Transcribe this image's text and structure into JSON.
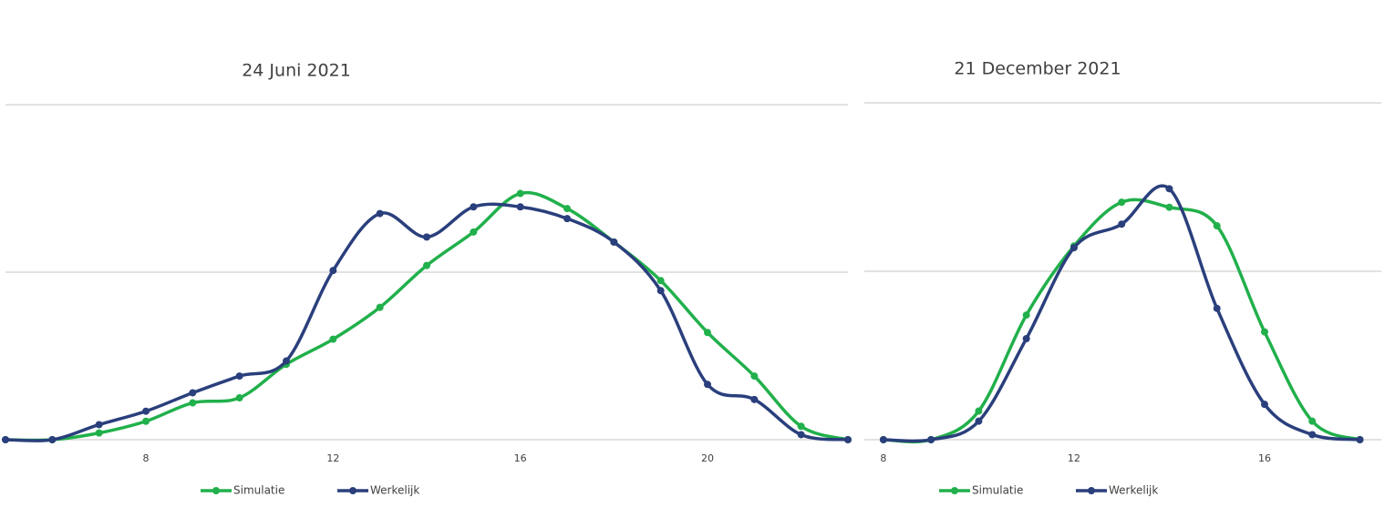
{
  "chart_data": [
    {
      "type": "line",
      "title": "24 Juni 2021",
      "x": [
        5,
        6,
        7,
        8,
        9,
        10,
        11,
        12,
        13,
        14,
        15,
        16,
        17,
        18,
        19,
        20,
        21,
        22,
        23
      ],
      "xlim": [
        5,
        23
      ],
      "xticks": [
        8,
        12,
        16,
        20
      ],
      "ylim": [
        0,
        2
      ],
      "yticks": [
        0,
        1,
        2
      ],
      "grid": true,
      "smooth": true,
      "series": [
        {
          "name": "Simulatie",
          "color": "#21b04b",
          "values": [
            0,
            0,
            0.04,
            0.11,
            0.22,
            0.25,
            0.45,
            0.6,
            0.79,
            1.04,
            1.24,
            1.47,
            1.38,
            1.18,
            0.95,
            0.64,
            0.38,
            0.08,
            0
          ]
        },
        {
          "name": "Werkelijk",
          "color": "#2a3f7c",
          "values": [
            0,
            0,
            0.09,
            0.17,
            0.28,
            0.38,
            0.47,
            1.01,
            1.35,
            1.21,
            1.39,
            1.39,
            1.32,
            1.18,
            0.89,
            0.33,
            0.24,
            0.03,
            0
          ]
        }
      ]
    },
    {
      "type": "line",
      "title": "21 December 2021",
      "x": [
        8,
        9,
        10,
        11,
        12,
        13,
        14,
        15,
        16,
        17,
        18
      ],
      "xlim": [
        7.6,
        18.45
      ],
      "xticks": [
        8,
        12,
        16
      ],
      "ylim": [
        0,
        2
      ],
      "yticks": [
        0,
        1,
        2
      ],
      "grid": true,
      "smooth": true,
      "series": [
        {
          "name": "Simulatie",
          "color": "#21b04b",
          "values": [
            0,
            0,
            0.17,
            0.74,
            1.15,
            1.41,
            1.38,
            1.27,
            0.64,
            0.11,
            0
          ]
        },
        {
          "name": "Werkelijk",
          "color": "#2a3f7c",
          "values": [
            0,
            0,
            0.11,
            0.6,
            1.14,
            1.28,
            1.49,
            0.78,
            0.21,
            0.03,
            0
          ]
        }
      ]
    }
  ]
}
